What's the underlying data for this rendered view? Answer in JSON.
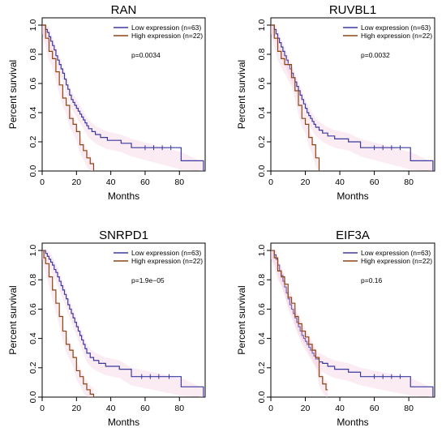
{
  "chart_data": [
    {
      "type": "line",
      "title": "RAN",
      "xlabel": "Months",
      "ylabel": "Percent survival",
      "xlim": [
        0,
        95
      ],
      "ylim": [
        0,
        1.05
      ],
      "xticks": [
        "0",
        "20",
        "40",
        "60",
        "80"
      ],
      "yticks": [
        "0.0",
        "0.2",
        "0.4",
        "0.6",
        "0.8",
        "1.0"
      ],
      "legend_position": "top-right",
      "pvalue": "p=0.0034",
      "series": [
        {
          "name": "Low expression (n=63)",
          "color": "#3a3a9e",
          "x": [
            0,
            2,
            3,
            4,
            5,
            6,
            7,
            8,
            9,
            10,
            11,
            12,
            13,
            14,
            15,
            16,
            17,
            18,
            19,
            20,
            21,
            22,
            23,
            24,
            25,
            26,
            27,
            29,
            31,
            34,
            38,
            46,
            52,
            81,
            94
          ],
          "y": [
            1.0,
            0.97,
            0.95,
            0.92,
            0.89,
            0.86,
            0.83,
            0.79,
            0.76,
            0.73,
            0.7,
            0.67,
            0.63,
            0.59,
            0.56,
            0.52,
            0.49,
            0.47,
            0.45,
            0.43,
            0.41,
            0.39,
            0.37,
            0.35,
            0.33,
            0.31,
            0.29,
            0.27,
            0.25,
            0.23,
            0.21,
            0.19,
            0.16,
            0.07,
            0.0
          ],
          "censor_x": [
            60,
            65,
            70,
            75
          ]
        },
        {
          "name": "High expression (n=22)",
          "color": "#8b4513",
          "x": [
            0,
            2,
            4,
            6,
            8,
            10,
            12,
            14,
            16,
            18,
            20,
            22,
            24,
            26,
            28,
            30
          ],
          "y": [
            1.0,
            0.91,
            0.82,
            0.77,
            0.68,
            0.59,
            0.5,
            0.45,
            0.36,
            0.32,
            0.27,
            0.18,
            0.14,
            0.09,
            0.05,
            0.0
          ],
          "censor_x": []
        }
      ]
    },
    {
      "type": "line",
      "title": "RUVBL1",
      "xlabel": "Months",
      "ylabel": "Percent survival",
      "xlim": [
        0,
        95
      ],
      "ylim": [
        0,
        1.05
      ],
      "xticks": [
        "0",
        "20",
        "40",
        "60",
        "80"
      ],
      "yticks": [
        "0.0",
        "0.2",
        "0.4",
        "0.6",
        "0.8",
        "1.0"
      ],
      "legend_position": "top-right",
      "pvalue": "p=0.0032",
      "series": [
        {
          "name": "Low expression (n=63)",
          "color": "#3a3a9e",
          "x": [
            0,
            2,
            3,
            4,
            5,
            6,
            7,
            8,
            9,
            10,
            11,
            12,
            13,
            14,
            15,
            16,
            17,
            18,
            19,
            20,
            21,
            22,
            23,
            24,
            25,
            26,
            28,
            30,
            33,
            37,
            45,
            52,
            81,
            94
          ],
          "y": [
            1.0,
            0.97,
            0.94,
            0.91,
            0.88,
            0.85,
            0.82,
            0.79,
            0.76,
            0.73,
            0.7,
            0.67,
            0.64,
            0.61,
            0.58,
            0.55,
            0.52,
            0.49,
            0.46,
            0.43,
            0.4,
            0.38,
            0.36,
            0.34,
            0.32,
            0.3,
            0.28,
            0.26,
            0.24,
            0.22,
            0.2,
            0.16,
            0.07,
            0.0
          ],
          "censor_x": [
            60,
            65,
            70,
            75
          ]
        },
        {
          "name": "High expression (n=22)",
          "color": "#8b4513",
          "x": [
            0,
            2,
            4,
            6,
            8,
            12,
            14,
            16,
            18,
            20,
            22,
            24,
            26,
            28
          ],
          "y": [
            1.0,
            0.91,
            0.82,
            0.77,
            0.73,
            0.64,
            0.55,
            0.45,
            0.36,
            0.32,
            0.23,
            0.18,
            0.09,
            0.0
          ],
          "censor_x": []
        }
      ]
    },
    {
      "type": "line",
      "title": "SNRPD1",
      "xlabel": "Months",
      "ylabel": "Percent survival",
      "xlim": [
        0,
        95
      ],
      "ylim": [
        0,
        1.05
      ],
      "xticks": [
        "0",
        "20",
        "40",
        "60",
        "80"
      ],
      "yticks": [
        "0.0",
        "0.2",
        "0.4",
        "0.6",
        "0.8",
        "1.0"
      ],
      "legend_position": "top-right",
      "pvalue": "p=1.9e−05",
      "series": [
        {
          "name": "Low expression (n=63)",
          "color": "#3a3a9e",
          "x": [
            0,
            2,
            3,
            4,
            5,
            6,
            7,
            8,
            9,
            10,
            11,
            12,
            13,
            14,
            15,
            16,
            17,
            18,
            19,
            20,
            21,
            22,
            23,
            24,
            25,
            26,
            28,
            30,
            33,
            37,
            45,
            52,
            81,
            94
          ],
          "y": [
            1.0,
            0.98,
            0.96,
            0.94,
            0.92,
            0.9,
            0.87,
            0.85,
            0.82,
            0.79,
            0.76,
            0.73,
            0.7,
            0.67,
            0.63,
            0.6,
            0.57,
            0.54,
            0.51,
            0.48,
            0.45,
            0.42,
            0.39,
            0.36,
            0.33,
            0.3,
            0.27,
            0.25,
            0.23,
            0.21,
            0.19,
            0.14,
            0.07,
            0.0
          ],
          "censor_x": [
            58,
            63,
            68,
            74
          ]
        },
        {
          "name": "High expression (n=22)",
          "color": "#8b4513",
          "x": [
            0,
            1,
            2,
            4,
            6,
            8,
            10,
            12,
            14,
            16,
            18,
            20,
            22,
            24,
            26,
            28,
            30
          ],
          "y": [
            1.0,
            0.95,
            0.91,
            0.82,
            0.73,
            0.64,
            0.55,
            0.45,
            0.36,
            0.32,
            0.27,
            0.18,
            0.14,
            0.09,
            0.05,
            0.02,
            0.0
          ],
          "censor_x": []
        }
      ]
    },
    {
      "type": "line",
      "title": "EIF3A",
      "xlabel": "Months",
      "ylabel": "Percent survival",
      "xlim": [
        0,
        95
      ],
      "ylim": [
        0,
        1.05
      ],
      "xticks": [
        "0",
        "20",
        "40",
        "60",
        "80"
      ],
      "yticks": [
        "0.0",
        "0.2",
        "0.4",
        "0.6",
        "0.8",
        "1.0"
      ],
      "legend_position": "top-right",
      "pvalue": "p=0.16",
      "series": [
        {
          "name": "Low expression (n=63)",
          "color": "#3a3a9e",
          "x": [
            0,
            2,
            3,
            4,
            5,
            6,
            7,
            8,
            9,
            10,
            11,
            12,
            13,
            14,
            15,
            16,
            17,
            18,
            19,
            20,
            21,
            22,
            23,
            24,
            25,
            26,
            28,
            30,
            33,
            37,
            45,
            52,
            81,
            94
          ],
          "y": [
            1.0,
            0.97,
            0.94,
            0.9,
            0.86,
            0.83,
            0.79,
            0.75,
            0.71,
            0.67,
            0.63,
            0.6,
            0.57,
            0.54,
            0.51,
            0.48,
            0.45,
            0.42,
            0.4,
            0.38,
            0.36,
            0.34,
            0.32,
            0.3,
            0.28,
            0.26,
            0.24,
            0.23,
            0.21,
            0.19,
            0.17,
            0.14,
            0.07,
            0.0
          ],
          "censor_x": [
            60,
            65,
            70,
            75
          ]
        },
        {
          "name": "High expression (n=22)",
          "color": "#8b4513",
          "x": [
            0,
            2,
            4,
            6,
            8,
            10,
            12,
            14,
            16,
            18,
            20,
            22,
            24,
            26,
            28,
            30,
            32,
            33
          ],
          "y": [
            1.0,
            0.95,
            0.86,
            0.82,
            0.77,
            0.68,
            0.64,
            0.55,
            0.5,
            0.45,
            0.41,
            0.36,
            0.32,
            0.27,
            0.14,
            0.09,
            0.05,
            0.05
          ],
          "censor_x": []
        }
      ]
    }
  ]
}
